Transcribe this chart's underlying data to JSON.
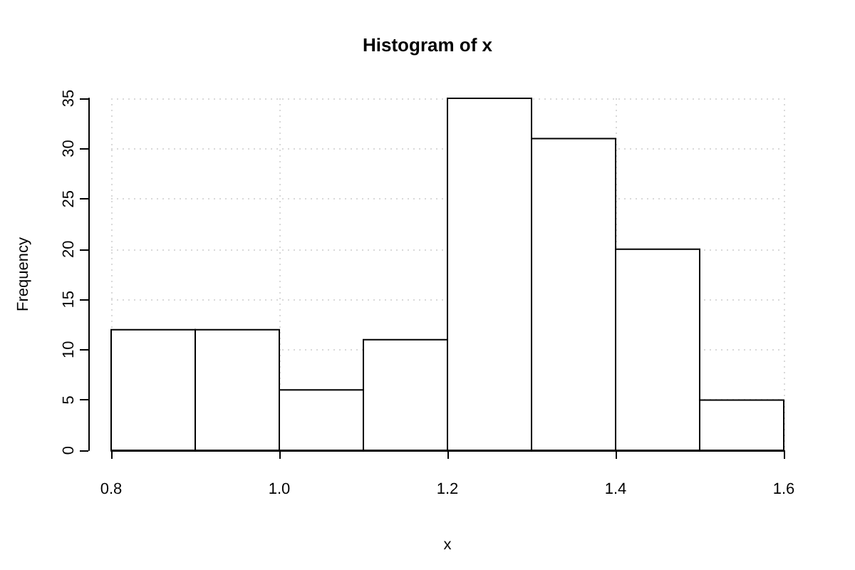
{
  "chart_data": {
    "type": "histogram",
    "title": "Histogram of x",
    "xlabel": "x",
    "ylabel": "Frequency",
    "bins": [
      0.8,
      0.9,
      1.0,
      1.1,
      1.2,
      1.3,
      1.4,
      1.5,
      1.6
    ],
    "values": [
      12,
      12,
      6,
      11,
      35,
      31,
      20,
      5
    ],
    "color": "#ffffff",
    "xlim": [
      0.8,
      1.6
    ],
    "ylim": [
      0,
      35
    ],
    "xticks": [
      0.8,
      {
        "value": 1,
        "label": "1.0"
      },
      1.2,
      1.4,
      1.6
    ],
    "yticks": [
      0,
      5,
      10,
      15,
      20,
      25,
      30,
      35
    ],
    "grid": true
  }
}
